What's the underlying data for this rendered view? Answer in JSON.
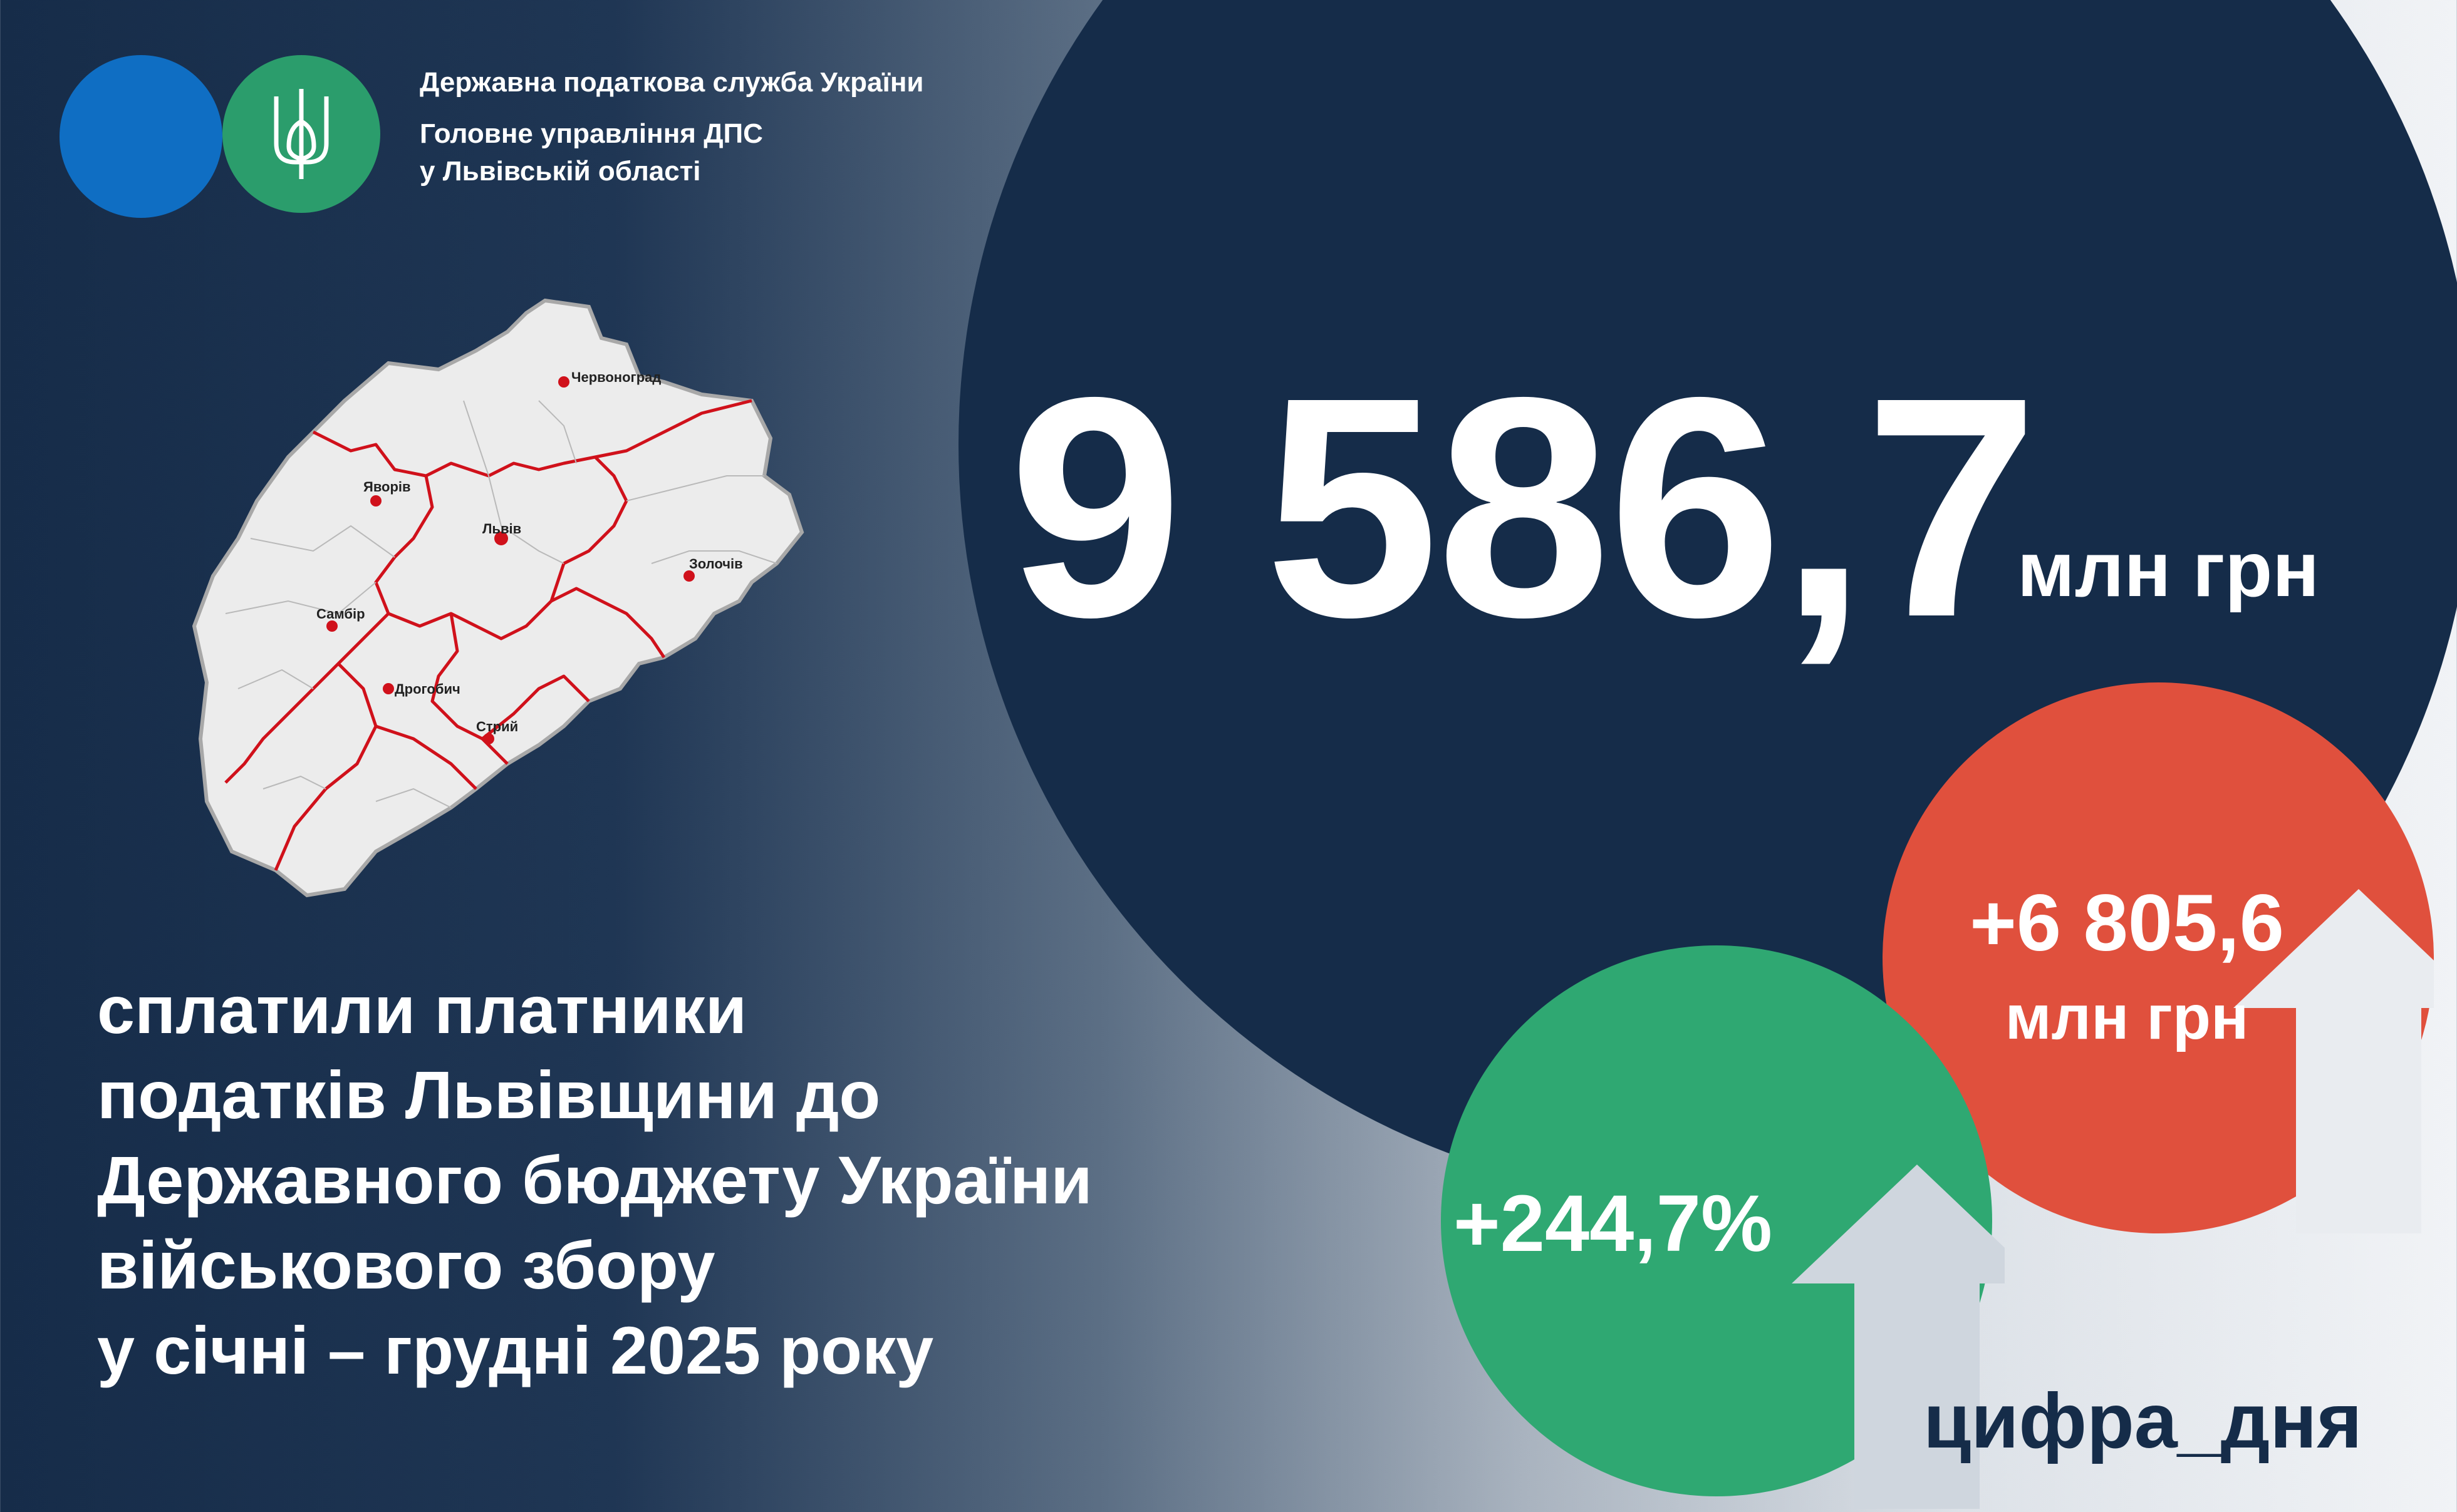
{
  "organization": {
    "name": "Державна податкова служба України",
    "department_line1": "Головне управління ДПС",
    "department_line2": "у Львівській області"
  },
  "map": {
    "cities": [
      "Червоноград",
      "Яворів",
      "Львів",
      "Золочів",
      "Самбір",
      "Дрогобич",
      "Стрий"
    ]
  },
  "main_stat": {
    "value": "9 586,7",
    "unit": "млн грн"
  },
  "growth_absolute": {
    "value": "+6 805,6",
    "unit": "млн грн"
  },
  "growth_percent": {
    "value": "+244,7%"
  },
  "caption": {
    "lines": [
      "сплатили платники",
      "податків Львівщини до",
      "Державного бюджету України",
      "військового збору",
      "у січні – грудні 2025 року"
    ]
  },
  "hashtag": "цифра_дня",
  "colors": {
    "navy": "#152c49",
    "blue": "#0f6ec3",
    "green": "#2b9d6c",
    "red": "#e0503d",
    "map_border": "#d0111b"
  }
}
